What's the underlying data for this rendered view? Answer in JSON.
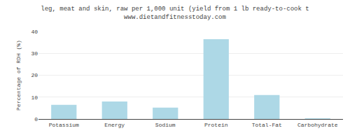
{
  "chart_data": {
    "type": "bar",
    "title": "leg, meat and skin, raw per 1,000 unit (yield from 1 lb ready-to-cook t",
    "subtitle": "www.dietandfitnesstoday.com",
    "ylabel": "Percentage of RDH (%)",
    "categories": [
      "Potassium",
      "Energy",
      "Sodium",
      "Protein",
      "Total-Fat",
      "Carbohydrate"
    ],
    "values": [
      6.5,
      8.0,
      5.2,
      36.5,
      11.0,
      0.2
    ],
    "color": "#add8e6",
    "ylim": [
      0,
      40
    ],
    "yticks": [
      0,
      10,
      20,
      30,
      40
    ],
    "grid": true
  }
}
